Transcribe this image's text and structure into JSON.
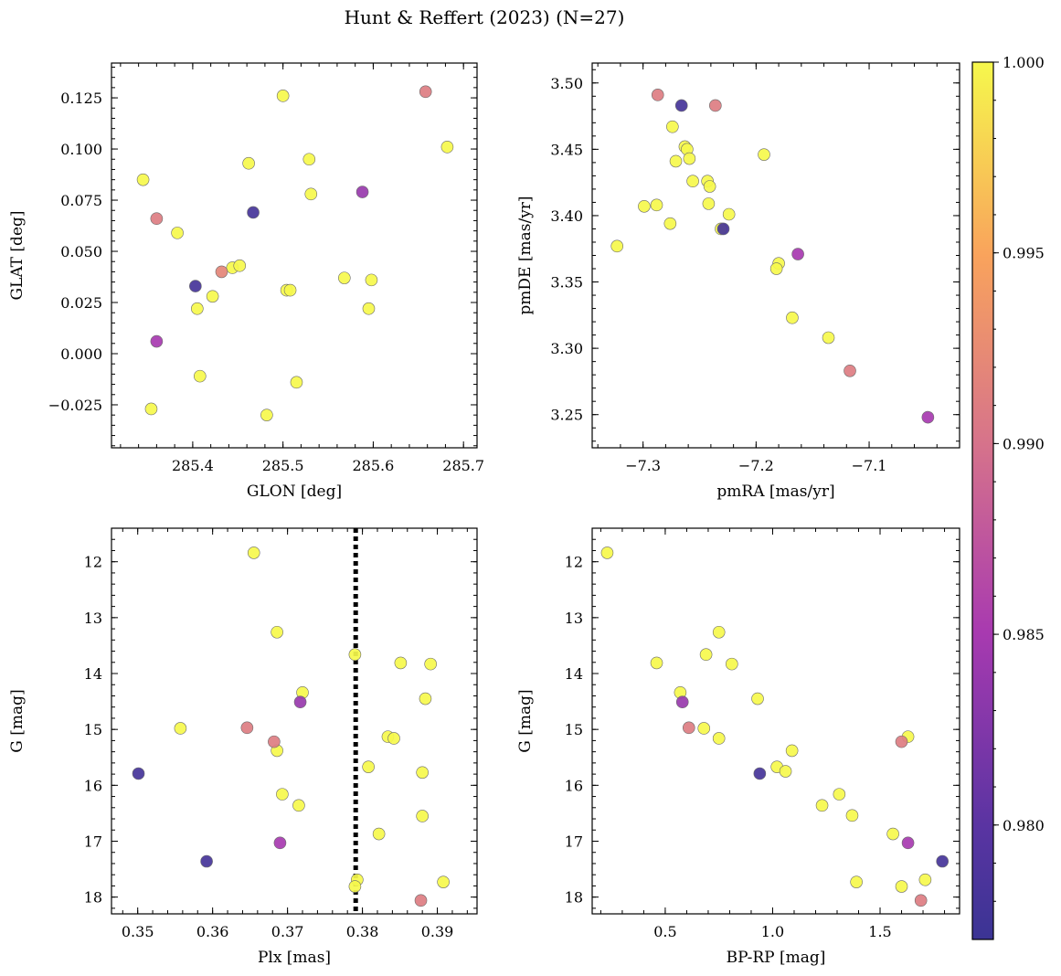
{
  "title": "Hunt & Reffert (2023) (N=27)",
  "colorbar": {
    "min": 0.977,
    "max": 1.0,
    "ticks": [
      0.98,
      0.985,
      0.99,
      0.995,
      1.0
    ],
    "tick_labels": [
      "0.980",
      "0.985",
      "0.990",
      "0.995",
      "1.000"
    ],
    "colormap": "plasma"
  },
  "chart_data": [
    {
      "type": "scatter",
      "xlabel": "GLON [deg]",
      "ylabel": "GLAT [deg]",
      "xlim": [
        285.31,
        285.715
      ],
      "ylim": [
        -0.046,
        0.142
      ],
      "xticks": [
        285.4,
        285.5,
        285.6,
        285.7
      ],
      "xtick_labels": [
        "285.4",
        "285.5",
        "285.6",
        "285.7"
      ],
      "yticks": [
        -0.025,
        0.0,
        0.025,
        0.05,
        0.075,
        0.1,
        0.125
      ],
      "ytick_labels": [
        "−0.025",
        "0.000",
        "0.025",
        "0.050",
        "0.075",
        "0.100",
        "0.125"
      ],
      "y_inverted": false,
      "points": [
        {
          "x": 285.345,
          "y": 0.085,
          "p": 1.0
        },
        {
          "x": 285.36,
          "y": 0.066,
          "p": 0.991
        },
        {
          "x": 285.383,
          "y": 0.059,
          "p": 1.0
        },
        {
          "x": 285.403,
          "y": 0.033,
          "p": 0.978
        },
        {
          "x": 285.405,
          "y": 0.022,
          "p": 1.0
        },
        {
          "x": 285.408,
          "y": -0.011,
          "p": 1.0
        },
        {
          "x": 285.36,
          "y": 0.006,
          "p": 0.985
        },
        {
          "x": 285.354,
          "y": -0.027,
          "p": 1.0
        },
        {
          "x": 285.422,
          "y": 0.028,
          "p": 1.0
        },
        {
          "x": 285.432,
          "y": 0.04,
          "p": 0.992
        },
        {
          "x": 285.444,
          "y": 0.042,
          "p": 1.0
        },
        {
          "x": 285.452,
          "y": 0.043,
          "p": 1.0
        },
        {
          "x": 285.462,
          "y": 0.093,
          "p": 1.0
        },
        {
          "x": 285.467,
          "y": 0.069,
          "p": 0.978
        },
        {
          "x": 285.482,
          "y": -0.03,
          "p": 1.0
        },
        {
          "x": 285.5,
          "y": 0.126,
          "p": 1.0
        },
        {
          "x": 285.504,
          "y": 0.031,
          "p": 1.0
        },
        {
          "x": 285.508,
          "y": 0.031,
          "p": 1.0
        },
        {
          "x": 285.515,
          "y": -0.014,
          "p": 1.0
        },
        {
          "x": 285.529,
          "y": 0.095,
          "p": 1.0
        },
        {
          "x": 285.531,
          "y": 0.078,
          "p": 1.0
        },
        {
          "x": 285.568,
          "y": 0.037,
          "p": 1.0
        },
        {
          "x": 285.588,
          "y": 0.079,
          "p": 0.984
        },
        {
          "x": 285.595,
          "y": 0.022,
          "p": 1.0
        },
        {
          "x": 285.598,
          "y": 0.036,
          "p": 1.0
        },
        {
          "x": 285.658,
          "y": 0.128,
          "p": 0.991
        },
        {
          "x": 285.682,
          "y": 0.101,
          "p": 1.0
        }
      ]
    },
    {
      "type": "scatter",
      "xlabel": "pmRA [mas/yr]",
      "ylabel": "pmDE [mas/yr]",
      "xlim": [
        -7.345,
        -7.02
      ],
      "ylim": [
        3.225,
        3.515
      ],
      "xticks": [
        -7.3,
        -7.2,
        -7.1
      ],
      "xtick_labels": [
        "−7.3",
        "−7.2",
        "−7.1"
      ],
      "yticks": [
        3.25,
        3.3,
        3.35,
        3.4,
        3.45,
        3.5
      ],
      "ytick_labels": [
        "3.25",
        "3.30",
        "3.35",
        "3.40",
        "3.45",
        "3.50"
      ],
      "y_inverted": false,
      "points": [
        {
          "x": -7.323,
          "y": 3.377,
          "p": 1.0
        },
        {
          "x": -7.299,
          "y": 3.407,
          "p": 1.0
        },
        {
          "x": -7.288,
          "y": 3.408,
          "p": 1.0
        },
        {
          "x": -7.287,
          "y": 3.491,
          "p": 0.991
        },
        {
          "x": -7.276,
          "y": 3.394,
          "p": 1.0
        },
        {
          "x": -7.274,
          "y": 3.467,
          "p": 1.0
        },
        {
          "x": -7.271,
          "y": 3.441,
          "p": 1.0
        },
        {
          "x": -7.266,
          "y": 3.483,
          "p": 0.978
        },
        {
          "x": -7.263,
          "y": 3.452,
          "p": 1.0
        },
        {
          "x": -7.261,
          "y": 3.45,
          "p": 1.0
        },
        {
          "x": -7.259,
          "y": 3.443,
          "p": 1.0
        },
        {
          "x": -7.256,
          "y": 3.426,
          "p": 1.0
        },
        {
          "x": -7.243,
          "y": 3.426,
          "p": 1.0
        },
        {
          "x": -7.241,
          "y": 3.422,
          "p": 1.0
        },
        {
          "x": -7.242,
          "y": 3.409,
          "p": 1.0
        },
        {
          "x": -7.236,
          "y": 3.483,
          "p": 0.991
        },
        {
          "x": -7.229,
          "y": 3.39,
          "p": 0.978
        },
        {
          "x": -7.231,
          "y": 3.39,
          "p": 1.0
        },
        {
          "x": -7.224,
          "y": 3.401,
          "p": 1.0
        },
        {
          "x": -7.193,
          "y": 3.446,
          "p": 1.0
        },
        {
          "x": -7.18,
          "y": 3.364,
          "p": 1.0
        },
        {
          "x": -7.182,
          "y": 3.36,
          "p": 1.0
        },
        {
          "x": -7.168,
          "y": 3.323,
          "p": 1.0
        },
        {
          "x": -7.163,
          "y": 3.371,
          "p": 0.985
        },
        {
          "x": -7.136,
          "y": 3.308,
          "p": 1.0
        },
        {
          "x": -7.117,
          "y": 3.283,
          "p": 0.991
        },
        {
          "x": -7.048,
          "y": 3.248,
          "p": 0.985
        }
      ]
    },
    {
      "type": "scatter",
      "xlabel": "Plx [mas]",
      "ylabel": "G [mag]",
      "xlim": [
        0.3465,
        0.3953
      ],
      "ylim": [
        18.3,
        11.4
      ],
      "xticks": [
        0.35,
        0.36,
        0.37,
        0.38,
        0.39
      ],
      "xtick_labels": [
        "0.35",
        "0.36",
        "0.37",
        "0.38",
        "0.39"
      ],
      "yticks": [
        12,
        13,
        14,
        15,
        16,
        17,
        18
      ],
      "ytick_labels": [
        "12",
        "13",
        "14",
        "15",
        "16",
        "17",
        "18"
      ],
      "y_inverted": true,
      "vline_x": 0.3791,
      "points": [
        {
          "x": 0.3655,
          "y": 11.84,
          "p": 1.0
        },
        {
          "x": 0.3686,
          "y": 13.26,
          "p": 1.0
        },
        {
          "x": 0.379,
          "y": 13.66,
          "p": 1.0
        },
        {
          "x": 0.3851,
          "y": 13.81,
          "p": 1.0
        },
        {
          "x": 0.3891,
          "y": 13.83,
          "p": 1.0
        },
        {
          "x": 0.372,
          "y": 14.34,
          "p": 1.0
        },
        {
          "x": 0.3884,
          "y": 14.45,
          "p": 1.0
        },
        {
          "x": 0.3717,
          "y": 14.51,
          "p": 0.984
        },
        {
          "x": 0.3557,
          "y": 14.98,
          "p": 1.0
        },
        {
          "x": 0.3646,
          "y": 14.97,
          "p": 0.991
        },
        {
          "x": 0.3834,
          "y": 15.13,
          "p": 1.0
        },
        {
          "x": 0.3842,
          "y": 15.16,
          "p": 1.0
        },
        {
          "x": 0.3682,
          "y": 15.22,
          "p": 0.991
        },
        {
          "x": 0.3686,
          "y": 15.38,
          "p": 1.0
        },
        {
          "x": 0.3808,
          "y": 15.67,
          "p": 1.0
        },
        {
          "x": 0.388,
          "y": 15.77,
          "p": 1.0
        },
        {
          "x": 0.3501,
          "y": 15.79,
          "p": 0.978
        },
        {
          "x": 0.3693,
          "y": 16.16,
          "p": 1.0
        },
        {
          "x": 0.3715,
          "y": 16.36,
          "p": 1.0
        },
        {
          "x": 0.388,
          "y": 16.55,
          "p": 1.0
        },
        {
          "x": 0.3822,
          "y": 16.87,
          "p": 1.0
        },
        {
          "x": 0.369,
          "y": 17.03,
          "p": 0.985
        },
        {
          "x": 0.3592,
          "y": 17.36,
          "p": 0.978
        },
        {
          "x": 0.3793,
          "y": 17.69,
          "p": 1.0
        },
        {
          "x": 0.3908,
          "y": 17.73,
          "p": 1.0
        },
        {
          "x": 0.379,
          "y": 17.81,
          "p": 1.0
        },
        {
          "x": 0.3878,
          "y": 18.06,
          "p": 0.991
        }
      ]
    },
    {
      "type": "scatter",
      "xlabel": "BP-RP [mag]",
      "ylabel": "G [mag]",
      "xlim": [
        0.16,
        1.87
      ],
      "ylim": [
        18.3,
        11.4
      ],
      "xticks": [
        0.5,
        1.0,
        1.5
      ],
      "xtick_labels": [
        "0.5",
        "1.0",
        "1.5"
      ],
      "yticks": [
        12,
        13,
        14,
        15,
        16,
        17,
        18
      ],
      "ytick_labels": [
        "12",
        "13",
        "14",
        "15",
        "16",
        "17",
        "18"
      ],
      "y_inverted": true,
      "points": [
        {
          "x": 0.23,
          "y": 11.84,
          "p": 1.0
        },
        {
          "x": 0.75,
          "y": 13.26,
          "p": 1.0
        },
        {
          "x": 0.69,
          "y": 13.66,
          "p": 1.0
        },
        {
          "x": 0.46,
          "y": 13.81,
          "p": 1.0
        },
        {
          "x": 0.81,
          "y": 13.83,
          "p": 1.0
        },
        {
          "x": 0.57,
          "y": 14.34,
          "p": 1.0
        },
        {
          "x": 0.93,
          "y": 14.45,
          "p": 1.0
        },
        {
          "x": 0.58,
          "y": 14.51,
          "p": 0.984
        },
        {
          "x": 0.61,
          "y": 14.97,
          "p": 0.991
        },
        {
          "x": 0.68,
          "y": 14.98,
          "p": 1.0
        },
        {
          "x": 1.63,
          "y": 15.13,
          "p": 1.0
        },
        {
          "x": 0.75,
          "y": 15.16,
          "p": 1.0
        },
        {
          "x": 1.6,
          "y": 15.22,
          "p": 0.991
        },
        {
          "x": 1.09,
          "y": 15.38,
          "p": 1.0
        },
        {
          "x": 1.02,
          "y": 15.67,
          "p": 1.0
        },
        {
          "x": 1.06,
          "y": 15.75,
          "p": 1.0
        },
        {
          "x": 0.94,
          "y": 15.79,
          "p": 0.978
        },
        {
          "x": 1.31,
          "y": 16.16,
          "p": 1.0
        },
        {
          "x": 1.23,
          "y": 16.36,
          "p": 1.0
        },
        {
          "x": 1.37,
          "y": 16.54,
          "p": 1.0
        },
        {
          "x": 1.56,
          "y": 16.87,
          "p": 1.0
        },
        {
          "x": 1.63,
          "y": 17.03,
          "p": 0.985
        },
        {
          "x": 1.79,
          "y": 17.36,
          "p": 0.978
        },
        {
          "x": 1.71,
          "y": 17.69,
          "p": 1.0
        },
        {
          "x": 1.39,
          "y": 17.73,
          "p": 1.0
        },
        {
          "x": 1.6,
          "y": 17.81,
          "p": 1.0
        },
        {
          "x": 1.69,
          "y": 18.06,
          "p": 0.991
        }
      ]
    }
  ]
}
